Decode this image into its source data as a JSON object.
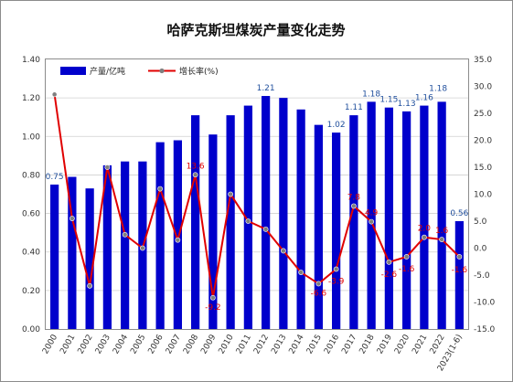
{
  "chart_data": {
    "type": "bar",
    "title": "哈萨克斯坦煤炭产量变化走势",
    "categories": [
      "2000",
      "2001",
      "2002",
      "2003",
      "2004",
      "2005",
      "2006",
      "2007",
      "2008",
      "2009",
      "2010",
      "2011",
      "2012",
      "2013",
      "2014",
      "2015",
      "2016",
      "2017",
      "2018",
      "2019",
      "2020",
      "2021",
      "2022",
      "2023(1-6)"
    ],
    "series": [
      {
        "name": "产量/亿吨",
        "type": "bar",
        "axis": "left",
        "color": "#0000cc",
        "values": [
          0.75,
          0.79,
          0.73,
          0.85,
          0.87,
          0.87,
          0.97,
          0.98,
          1.11,
          1.01,
          1.11,
          1.16,
          1.21,
          1.2,
          1.14,
          1.06,
          1.02,
          1.11,
          1.18,
          1.15,
          1.13,
          1.16,
          1.18,
          0.56
        ],
        "labels": [
          {
            "index": 0,
            "text": "0.75"
          },
          {
            "index": 12,
            "text": "1.21"
          },
          {
            "index": 16,
            "text": "1.02"
          },
          {
            "index": 17,
            "text": "1.11"
          },
          {
            "index": 18,
            "text": "1.18"
          },
          {
            "index": 19,
            "text": "1.15"
          },
          {
            "index": 20,
            "text": "1.13"
          },
          {
            "index": 21,
            "text": "1.16"
          },
          {
            "index": 22,
            "text": "1.18"
          },
          {
            "index": 23,
            "text": "0.56"
          }
        ]
      },
      {
        "name": "增长率(%)",
        "type": "line",
        "axis": "right",
        "color": "#e00000",
        "values": [
          28.5,
          5.5,
          -7.0,
          15.0,
          2.5,
          0.0,
          11.0,
          1.5,
          13.6,
          -9.2,
          10.0,
          5.0,
          3.5,
          -0.5,
          -4.5,
          -6.6,
          -3.9,
          7.8,
          4.9,
          -2.6,
          -1.6,
          2.0,
          1.6,
          -1.6
        ],
        "labels": [
          {
            "index": 8,
            "text": "13.6"
          },
          {
            "index": 9,
            "text": "-9.2"
          },
          {
            "index": 15,
            "text": "-6.6"
          },
          {
            "index": 16,
            "text": "-3.9"
          },
          {
            "index": 17,
            "text": "7.8"
          },
          {
            "index": 18,
            "text": "4.9"
          },
          {
            "index": 19,
            "text": "-2.6"
          },
          {
            "index": 20,
            "text": "-1.6"
          },
          {
            "index": 21,
            "text": "2.0"
          },
          {
            "index": 22,
            "text": "1.6"
          },
          {
            "index": 23,
            "text": "-1.6"
          }
        ]
      }
    ],
    "y_left": {
      "min": 0,
      "max": 1.4,
      "ticks": [
        "0.00",
        "0.20",
        "0.40",
        "0.60",
        "0.80",
        "1.00",
        "1.20",
        "1.40"
      ]
    },
    "y_right": {
      "min": -15,
      "max": 35,
      "ticks": [
        "-15.0",
        "-10.0",
        "-5.0",
        "0.0",
        "5.0",
        "10.0",
        "15.0",
        "20.0",
        "25.0",
        "30.0",
        "35.0"
      ]
    },
    "grid": true,
    "legend_position": "top-left",
    "colors": {
      "bar": "#0000cc",
      "line": "#e00000",
      "marker": "#7f7f7f",
      "bar_label": "#1f4e9c",
      "line_label": "#e00000"
    }
  }
}
